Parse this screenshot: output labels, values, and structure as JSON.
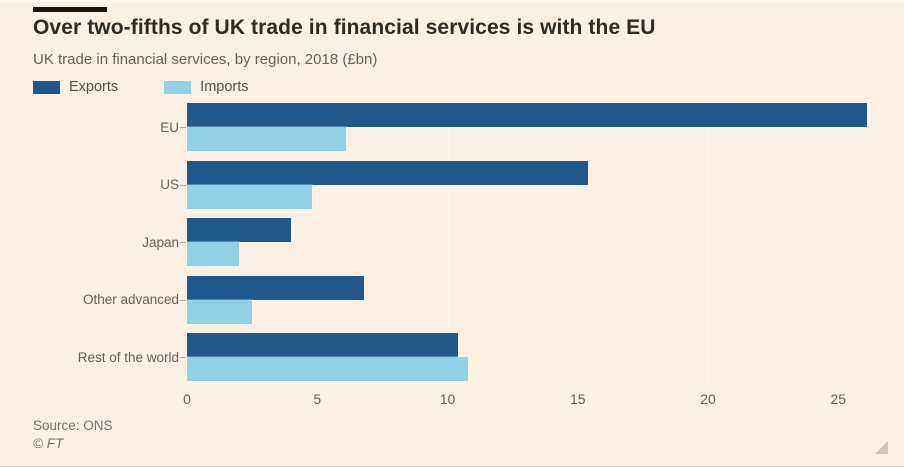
{
  "header": {
    "title": "Over two-fifths of UK trade in financial services is with the EU",
    "subtitle": "UK trade in financial services, by region, 2018 (£bn)"
  },
  "chart_data": {
    "type": "bar",
    "orientation": "horizontal",
    "title": "Over two-fifths of UK trade in financial services is with the EU",
    "subtitle": "UK trade in financial services, by region, 2018 (£bn)",
    "categories": [
      "EU",
      "US",
      "Japan",
      "Other advanced",
      "Rest of the world"
    ],
    "series": [
      {
        "name": "Exports",
        "color": "#21598c",
        "values": [
          26.1,
          15.4,
          4.0,
          6.8,
          10.4
        ]
      },
      {
        "name": "Imports",
        "color": "#91d0e5",
        "values": [
          6.1,
          4.8,
          2.0,
          2.5,
          10.8
        ]
      }
    ],
    "x_ticks": [
      "0",
      "5",
      "10",
      "15",
      "20",
      "25"
    ],
    "xlim": [
      0,
      26.2
    ],
    "xlabel": "",
    "ylabel": "",
    "grid": true,
    "legend_position": "top-left"
  },
  "colors": {
    "background": "#fcefe4",
    "accent_bar": "#161513",
    "title_text": "#2e2a26",
    "muted_text": "#66605c",
    "gridline": "#faf5ee"
  },
  "footer": {
    "source": "Source: ONS",
    "copyright": "© FT"
  }
}
